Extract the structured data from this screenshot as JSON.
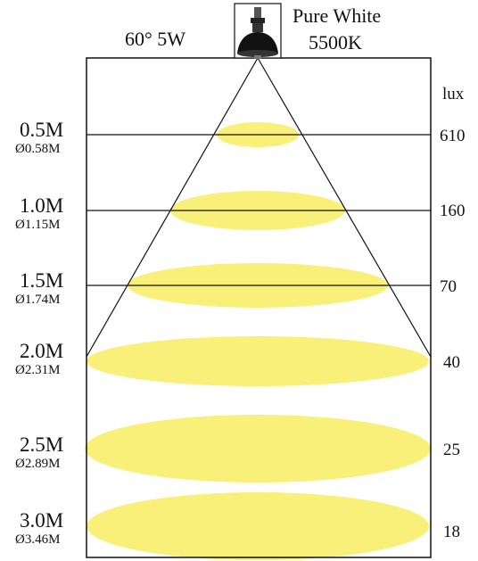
{
  "header": {
    "beam_power": "60° 5W",
    "color_name": "Pure White",
    "color_temp": "5500K"
  },
  "lux_unit": "lux",
  "colors": {
    "beam_fill": "#f9f07a",
    "line": "#111111",
    "background": "#ffffff"
  },
  "icon": "spotlight-bulb-icon",
  "rows": [
    {
      "distance": "0.5M",
      "diameter": "Ø0.58M",
      "lux": "610"
    },
    {
      "distance": "1.0M",
      "diameter": "Ø1.15M",
      "lux": "160"
    },
    {
      "distance": "1.5M",
      "diameter": "Ø1.74M",
      "lux": "70"
    },
    {
      "distance": "2.0M",
      "diameter": "Ø2.31M",
      "lux": "40"
    },
    {
      "distance": "2.5M",
      "diameter": "Ø2.89M",
      "lux": "25"
    },
    {
      "distance": "3.0M",
      "diameter": "Ø3.46M",
      "lux": "18"
    }
  ]
}
